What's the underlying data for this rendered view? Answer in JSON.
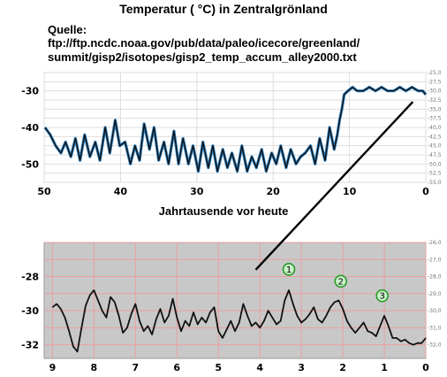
{
  "page": {
    "title": "Temperatur ( °C) in Zentralgrönland",
    "source_label": "Quelle:",
    "source_line1": "ftp://ftp.ncdc.noaa.gov/pub/data/paleo/icecore/greenland/",
    "source_line2": "summit/gisp2/isotopes/gisp2_temp_accum_alley2000.txt",
    "x_axis_label": "Jahrtausende vor heute"
  },
  "colors": {
    "top_background": "#ffffff",
    "bottom_background": "#c8c8c8",
    "grid_top": "#dddddd",
    "grid_bottom": "#e8a0a0",
    "series_line": "#111111",
    "series_fill": "#2a7fc0",
    "marker_stroke": "#2a9a2a",
    "marker_fill": "#c8f0c8",
    "connector": "#000000"
  },
  "chart_data": [
    {
      "type": "line",
      "title": "",
      "xlabel": "Jahrtausende vor heute",
      "ylabel": "",
      "x_reversed": true,
      "xlim": [
        50,
        0
      ],
      "ylim": [
        -55,
        -25
      ],
      "grid": true,
      "x_ticks": [
        "50",
        "40",
        "30",
        "20",
        "10",
        "0"
      ],
      "x_tick_values": [
        50,
        40,
        30,
        20,
        10,
        0
      ],
      "y_ticks_left": [
        "-30",
        "-40",
        "-50"
      ],
      "y_tick_values_left": [
        -30,
        -40,
        -50
      ],
      "y_ticks_right": [
        "-25,0",
        "-27,5",
        "-30,0",
        "-32,5",
        "-35,0",
        "-37,5",
        "-40,0",
        "-42,5",
        "-45,0",
        "-47,5",
        "-50,0",
        "-52,5",
        "-55,0"
      ],
      "y_tick_values_right": [
        -25,
        -27.5,
        -30,
        -32.5,
        -35,
        -37.5,
        -40,
        -42.5,
        -45,
        -47.5,
        -50,
        -52.5,
        -55
      ],
      "series": [
        {
          "x": [
            49.9,
            49.2,
            48.5,
            47.8,
            47.2,
            46.5,
            45.9,
            45.3,
            44.7,
            44.0,
            43.3,
            42.7,
            42.0,
            41.4,
            40.7,
            40.1,
            39.4,
            38.7,
            38.1,
            37.5,
            36.9,
            36.2,
            35.6,
            35.0,
            34.3,
            33.7,
            33.0,
            32.4,
            31.8,
            31.1,
            30.5,
            29.8,
            29.2,
            28.5,
            27.9,
            27.3,
            26.6,
            26.0,
            25.4,
            24.7,
            24.1,
            23.4,
            22.8,
            22.2,
            21.5,
            20.9,
            20.2,
            19.6,
            19.0,
            18.3,
            17.7,
            17.0,
            16.4,
            15.8,
            15.1,
            14.5,
            13.9,
            13.2,
            12.6,
            12.0,
            11.6,
            11.3,
            11.0,
            10.7,
            10.2,
            9.6,
            9.0,
            8.2,
            7.4,
            6.6,
            5.8,
            5.0,
            4.2,
            3.4,
            2.6,
            1.8,
            1.0,
            0.4,
            0.0
          ],
          "y": [
            -40,
            -42,
            -45,
            -47,
            -44,
            -48,
            -43,
            -49,
            -42,
            -48,
            -44,
            -49,
            -40,
            -47,
            -38,
            -45,
            -44,
            -50,
            -45,
            -49,
            -39,
            -46,
            -40,
            -49,
            -44,
            -50,
            -41,
            -50,
            -43,
            -50,
            -45,
            -52,
            -44,
            -51,
            -45,
            -52,
            -46,
            -51,
            -47,
            -52,
            -45,
            -52,
            -48,
            -51,
            -46,
            -52,
            -47,
            -50,
            -45,
            -51,
            -46,
            -50,
            -48,
            -47,
            -45,
            -50,
            -43,
            -49,
            -40,
            -46,
            -42,
            -38,
            -35,
            -31,
            -30,
            -29,
            -30,
            -30,
            -29,
            -30,
            -29,
            -30,
            -30,
            -29,
            -30,
            -29,
            -30,
            -30,
            -31
          ]
        }
      ]
    },
    {
      "type": "line",
      "title": "",
      "xlabel": "",
      "ylabel": "",
      "x_reversed": true,
      "xlim": [
        9.2,
        0
      ],
      "ylim": [
        -32.8,
        -26
      ],
      "grid": true,
      "x_ticks": [
        "9",
        "8",
        "7",
        "6",
        "5",
        "4",
        "3",
        "2",
        "1",
        "0"
      ],
      "x_tick_values": [
        9,
        8,
        7,
        6,
        5,
        4,
        3,
        2,
        1,
        0
      ],
      "y_ticks_left": [
        "-28",
        "-30",
        "-32"
      ],
      "y_tick_values_left": [
        -28,
        -30,
        -32
      ],
      "y_ticks_right": [
        "-26,0",
        "-27,0",
        "-28,0",
        "-29,0",
        "-30,0",
        "-31,0",
        "-32,0"
      ],
      "y_tick_values_right": [
        -26,
        -27,
        -28,
        -29,
        -30,
        -31,
        -32
      ],
      "annotations": [
        {
          "label": "1",
          "x": 3.3,
          "y": -28.3
        },
        {
          "label": "2",
          "x": 2.05,
          "y": -29.0
        },
        {
          "label": "3",
          "x": 1.05,
          "y": -29.85
        }
      ],
      "series": [
        {
          "x": [
            9.0,
            8.9,
            8.8,
            8.7,
            8.6,
            8.5,
            8.4,
            8.3,
            8.2,
            8.1,
            8.0,
            7.9,
            7.8,
            7.7,
            7.6,
            7.5,
            7.4,
            7.3,
            7.2,
            7.1,
            7.0,
            6.9,
            6.8,
            6.7,
            6.6,
            6.5,
            6.4,
            6.3,
            6.2,
            6.1,
            6.0,
            5.9,
            5.8,
            5.7,
            5.6,
            5.5,
            5.4,
            5.3,
            5.2,
            5.1,
            5.0,
            4.9,
            4.8,
            4.7,
            4.6,
            4.5,
            4.4,
            4.3,
            4.2,
            4.1,
            4.0,
            3.9,
            3.8,
            3.7,
            3.6,
            3.5,
            3.4,
            3.3,
            3.2,
            3.1,
            3.0,
            2.9,
            2.8,
            2.7,
            2.6,
            2.5,
            2.4,
            2.3,
            2.2,
            2.1,
            2.0,
            1.9,
            1.8,
            1.7,
            1.6,
            1.5,
            1.4,
            1.3,
            1.2,
            1.1,
            1.0,
            0.9,
            0.8,
            0.7,
            0.6,
            0.5,
            0.4,
            0.3,
            0.2,
            0.1,
            0.0
          ],
          "y": [
            -29.8,
            -29.6,
            -29.9,
            -30.4,
            -31.2,
            -32.1,
            -32.4,
            -31.0,
            -29.7,
            -29.1,
            -28.8,
            -29.4,
            -30.0,
            -30.4,
            -29.2,
            -29.5,
            -30.3,
            -31.3,
            -31.0,
            -30.2,
            -29.6,
            -30.6,
            -31.2,
            -30.9,
            -31.4,
            -30.5,
            -29.9,
            -30.7,
            -30.3,
            -29.3,
            -30.4,
            -31.2,
            -30.6,
            -30.9,
            -30.1,
            -30.8,
            -30.4,
            -30.7,
            -30.1,
            -29.8,
            -31.2,
            -31.6,
            -31.1,
            -30.6,
            -31.2,
            -30.7,
            -29.6,
            -30.3,
            -30.9,
            -30.7,
            -31.0,
            -30.6,
            -30.0,
            -30.4,
            -30.8,
            -30.6,
            -29.4,
            -28.8,
            -29.6,
            -30.3,
            -30.7,
            -30.5,
            -30.2,
            -29.8,
            -30.5,
            -30.7,
            -30.3,
            -29.8,
            -29.5,
            -29.4,
            -29.9,
            -30.6,
            -31.0,
            -31.3,
            -31.0,
            -30.7,
            -31.2,
            -31.3,
            -31.5,
            -30.9,
            -30.3,
            -30.9,
            -31.6,
            -31.6,
            -31.8,
            -31.7,
            -31.9,
            -32.0,
            -31.9,
            -31.9,
            -31.6
          ]
        }
      ]
    }
  ]
}
